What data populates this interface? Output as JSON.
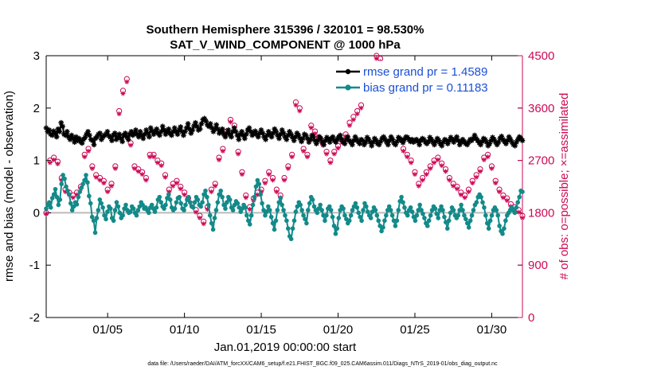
{
  "chart_data": {
    "type": "line",
    "title": "Southern Hemisphere 315396 / 320101 = 98.530%",
    "subtitle": "SAT_V_WIND_COMPONENT @ 1000 hPa",
    "xlabel": "Jan.01,2019 00:00:00 start",
    "ylabel": "rmse and bias (model - observation)",
    "ylabel_right": "# of obs: o=possible; ×=assimilated",
    "footer": "data file: /Users/raeder/DAI/ATM_forcXX/CAM6_setup/f.e21.FHIST_BGC.f09_025.CAM6assim.011/Diags_NTrS_2019-01/obs_diag_output.nc",
    "x_unit": "day of January 2019 (6-hourly cycles)",
    "xlim": [
      1.0,
      32.0
    ],
    "ylim": [
      -2,
      3
    ],
    "ylim_right": [
      0,
      4500
    ],
    "x_ticks": [
      5,
      10,
      15,
      20,
      25,
      30
    ],
    "x_tick_labels": [
      "01/05",
      "01/10",
      "01/15",
      "01/20",
      "01/25",
      "01/30"
    ],
    "y_ticks": [
      -2,
      -1,
      0,
      1,
      2,
      3
    ],
    "y_tick_labels": [
      "-2",
      "-1",
      "0",
      "1",
      "2",
      "3"
    ],
    "y2_ticks": [
      0,
      900,
      1800,
      2700,
      3600,
      4500
    ],
    "y2_tick_labels": [
      "0",
      "900",
      "1800",
      "2700",
      "3600",
      "4500"
    ],
    "legend": {
      "position": "top-right",
      "entries": [
        "rmse grand pr = 1.4589",
        "bias grand pr = 0.11183"
      ]
    },
    "colors": {
      "rmse": "#000000",
      "bias": "#138a8a",
      "obs": "#cc0a55",
      "zero_line": "#bbbbbb"
    },
    "series": [
      {
        "name": "rmse grand pr = 1.4589",
        "axis": "left",
        "marker": "star",
        "values": [
          1.62,
          1.55,
          1.58,
          1.5,
          1.48,
          1.56,
          1.52,
          1.45,
          1.6,
          1.55,
          1.72,
          1.65,
          1.5,
          1.48,
          1.55,
          1.45,
          1.4,
          1.48,
          1.42,
          1.35,
          1.45,
          1.38,
          1.42,
          1.36,
          1.33,
          1.4,
          1.44,
          1.5,
          1.55,
          1.48,
          1.4,
          1.38,
          1.3,
          1.42,
          1.45,
          1.5,
          1.52,
          1.4,
          1.45,
          1.48,
          1.5,
          1.55,
          1.47,
          1.44,
          1.38,
          1.48,
          1.52,
          1.4,
          1.45,
          1.5,
          1.42,
          1.36,
          1.48,
          1.52,
          1.45,
          1.4,
          1.5,
          1.55,
          1.48,
          1.52,
          1.58,
          1.5,
          1.45,
          1.55,
          1.48,
          1.42,
          1.5,
          1.58,
          1.52,
          1.45,
          1.62,
          1.56,
          1.5,
          1.55,
          1.6,
          1.52,
          1.48,
          1.55,
          1.65,
          1.58,
          1.5,
          1.55,
          1.6,
          1.52,
          1.48,
          1.55,
          1.62,
          1.55,
          1.5,
          1.58,
          1.64,
          1.55,
          1.48,
          1.55,
          1.62,
          1.7,
          1.6,
          1.52,
          1.58,
          1.66,
          1.72,
          1.65,
          1.58,
          1.6,
          1.7,
          1.78,
          1.8,
          1.75,
          1.68,
          1.65,
          1.7,
          1.62,
          1.55,
          1.6,
          1.68,
          1.6,
          1.52,
          1.56,
          1.6,
          1.5,
          1.45,
          1.52,
          1.58,
          1.5,
          1.45,
          1.55,
          1.62,
          1.55,
          1.48,
          1.4,
          1.5,
          1.55,
          1.48,
          1.42,
          1.5,
          1.58,
          1.62,
          1.55,
          1.48,
          1.52,
          1.56,
          1.5,
          1.45,
          1.52,
          1.58,
          1.52,
          1.45,
          1.4,
          1.48,
          1.55,
          1.5,
          1.45,
          1.52,
          1.6,
          1.55,
          1.48,
          1.42,
          1.5,
          1.58,
          1.52,
          1.45,
          1.4,
          1.48,
          1.55,
          1.5,
          1.44,
          1.38,
          1.45,
          1.52,
          1.48,
          1.42,
          1.36,
          1.42,
          1.5,
          1.48,
          1.42,
          1.35,
          1.4,
          1.48,
          1.45,
          1.38,
          1.32,
          1.38,
          1.45,
          1.42,
          1.35,
          1.3,
          1.38,
          1.44,
          1.4,
          1.35,
          1.42,
          1.45,
          1.38,
          1.35,
          1.4,
          1.45,
          1.48,
          1.4,
          1.35,
          1.32,
          1.4,
          1.45,
          1.38,
          1.35,
          1.3,
          1.38,
          1.45,
          1.4,
          1.36,
          1.32,
          1.4,
          1.38,
          1.3,
          1.35,
          1.44,
          1.4,
          1.35,
          1.28,
          1.35,
          1.42,
          1.38,
          1.32,
          1.3,
          1.36,
          1.42,
          1.45,
          1.4,
          1.35,
          1.3,
          1.38,
          1.45,
          1.4,
          1.33,
          1.3,
          1.36,
          1.44,
          1.42,
          1.38,
          1.34,
          1.4,
          1.45,
          1.44,
          1.4,
          1.36,
          1.4,
          1.35,
          1.38,
          1.4,
          1.36,
          1.3,
          1.38,
          1.42,
          1.4,
          1.35,
          1.32,
          1.36,
          1.44,
          1.4,
          1.35,
          1.3,
          1.36,
          1.42,
          1.38,
          1.32,
          1.28,
          1.35,
          1.4,
          1.38,
          1.32,
          1.38,
          1.44,
          1.4,
          1.35,
          1.4,
          1.45,
          1.38,
          1.3,
          1.35,
          1.4,
          1.36,
          1.32,
          1.3,
          1.35,
          1.4,
          1.38,
          1.42,
          1.48,
          1.42,
          1.38,
          1.34,
          1.3,
          1.36,
          1.42,
          1.4,
          1.35,
          1.28,
          1.32,
          1.38,
          1.44,
          1.4,
          1.35,
          1.3,
          1.35,
          1.42,
          1.46,
          1.4,
          1.36,
          1.32,
          1.38,
          1.45,
          1.4,
          1.35,
          1.3,
          1.28,
          1.35,
          1.4,
          1.45,
          1.42,
          1.38
        ]
      },
      {
        "name": "bias grand pr = 0.11183",
        "axis": "left",
        "marker": "dot",
        "values": [
          0.08,
          0.15,
          0.2,
          0.1,
          0.28,
          0.35,
          0.45,
          0.3,
          0.15,
          0.25,
          0.55,
          0.72,
          0.65,
          0.5,
          0.42,
          0.35,
          0.18,
          0.05,
          0.12,
          0.2,
          0.16,
          0.3,
          0.4,
          0.48,
          0.55,
          0.62,
          0.72,
          0.58,
          0.32,
          0.18,
          -0.08,
          -0.15,
          -0.38,
          -0.1,
          0.05,
          0.25,
          0.18,
          0.1,
          -0.05,
          -0.12,
          0.02,
          0.12,
          0.08,
          -0.1,
          -0.15,
          0.05,
          0.2,
          0.12,
          0.0,
          -0.1,
          -0.05,
          0.08,
          0.15,
          0.05,
          0.0,
          0.02,
          0.12,
          0.08,
          0.0,
          -0.05,
          0.05,
          0.12,
          0.2,
          0.15,
          0.08,
          0.1,
          0.05,
          0.0,
          0.1,
          0.15,
          0.08,
          0.02,
          0.1,
          0.25,
          0.3,
          0.2,
          0.12,
          0.08,
          0.15,
          0.28,
          0.35,
          0.25,
          0.1,
          0.05,
          0.08,
          0.2,
          0.28,
          0.3,
          0.18,
          0.08,
          0.05,
          0.15,
          0.25,
          0.3,
          0.2,
          0.12,
          0.1,
          0.2,
          0.3,
          0.25,
          0.15,
          0.12,
          0.2,
          0.35,
          0.42,
          0.3,
          0.15,
          -0.05,
          -0.2,
          -0.32,
          -0.1,
          0.05,
          0.2,
          0.35,
          0.42,
          0.3,
          0.15,
          0.08,
          0.2,
          0.3,
          0.25,
          0.1,
          0.05,
          0.15,
          0.22,
          0.18,
          0.1,
          0.02,
          0.08,
          0.15,
          0.1,
          -0.05,
          -0.15,
          -0.22,
          -0.05,
          0.15,
          0.3,
          0.5,
          0.62,
          0.55,
          0.35,
          0.18,
          0.05,
          -0.05,
          0.02,
          0.12,
          0.05,
          -0.08,
          -0.2,
          -0.32,
          -0.15,
          0.05,
          0.2,
          0.28,
          0.15,
          0.05,
          -0.05,
          -0.15,
          -0.3,
          -0.45,
          -0.5,
          -0.3,
          -0.15,
          0.02,
          0.12,
          0.2,
          0.15,
          0.05,
          -0.05,
          -0.12,
          -0.2,
          0.05,
          0.18,
          0.3,
          0.25,
          0.12,
          0.05,
          0.0,
          0.08,
          0.15,
          0.05,
          -0.05,
          -0.15,
          -0.05,
          0.08,
          0.12,
          0.05,
          -0.08,
          -0.25,
          -0.4,
          -0.3,
          -0.1,
          0.05,
          0.12,
          0.08,
          -0.05,
          -0.12,
          -0.2,
          -0.15,
          -0.05,
          0.05,
          0.12,
          0.18,
          0.1,
          0.0,
          -0.08,
          -0.15,
          0.05,
          0.18,
          0.12,
          0.02,
          -0.05,
          -0.1,
          0.02,
          0.1,
          0.05,
          -0.05,
          -0.15,
          -0.25,
          -0.35,
          -0.28,
          -0.15,
          -0.05,
          0.05,
          0.12,
          0.05,
          -0.05,
          -0.15,
          -0.25,
          -0.15,
          0.05,
          0.22,
          0.3,
          0.2,
          0.1,
          0.0,
          -0.05,
          0.05,
          0.1,
          0.02,
          -0.08,
          -0.15,
          -0.05,
          0.05,
          0.15,
          0.05,
          -0.02,
          -0.1,
          -0.2,
          -0.25,
          -0.15,
          -0.05,
          0.05,
          0.12,
          0.08,
          -0.02,
          -0.1,
          0.05,
          0.12,
          0.05,
          -0.08,
          -0.18,
          -0.3,
          -0.15,
          0.0,
          0.1,
          0.05,
          -0.05,
          -0.1,
          -0.05,
          0.05,
          0.15,
          0.05,
          -0.05,
          -0.12,
          -0.2,
          -0.28,
          -0.15,
          -0.05,
          0.05,
          0.15,
          0.2,
          0.3,
          0.35,
          0.3,
          0.2,
          0.1,
          -0.05,
          -0.2,
          -0.3,
          -0.15,
          -0.05,
          0.05,
          0.1,
          0.05,
          -0.05,
          -0.25,
          -0.35,
          -0.4,
          -0.3,
          -0.15,
          -0.05,
          0.0,
          0.05,
          0.1,
          0.05,
          0.0,
          0.1,
          0.2,
          0.3,
          0.42,
          0.4
        ]
      },
      {
        "name": "# of obs possible",
        "axis": "right",
        "marker": "circle",
        "x_step": 0.25,
        "values": [
          1800,
          2700,
          2750,
          2680,
          2400,
          2200,
          2150,
          2100,
          2150,
          2250,
          2800,
          2900,
          2600,
          2450,
          2400,
          2350,
          2200,
          2300,
          2600,
          3550,
          3900,
          4100,
          3000,
          2600,
          2550,
          2500,
          2400,
          2800,
          2800,
          2700,
          2650,
          2450,
          2200,
          2300,
          2350,
          2250,
          2150,
          2050,
          1950,
          1850,
          1750,
          1650,
          1900,
          2200,
          2300,
          2750,
          2900,
          3200,
          3400,
          3300,
          2850,
          2500,
          2100,
          1900,
          2050,
          2150,
          2200,
          2350,
          2500,
          2400,
          2200,
          2100,
          2400,
          2600,
          2800,
          3700,
          3600,
          2900,
          2800,
          3300,
          3200,
          3100,
          3000,
          2850,
          2700,
          2850,
          2950,
          3050,
          3150,
          3350,
          3450,
          3550,
          3650,
          4000,
          4200,
          4300,
          4500,
          4450,
          4350,
          4200,
          4100,
          3950,
          3850,
          2900,
          2800,
          2700,
          2500,
          2300,
          2400,
          2500,
          2600,
          2700,
          2750,
          2650,
          2550,
          2400,
          2300,
          2250,
          2150,
          2100,
          2200,
          2350,
          2450,
          2550,
          2750,
          2800,
          2600,
          2350,
          2200,
          2100,
          2050,
          1950,
          1900,
          1850,
          1750,
          1700,
          1800,
          1900,
          2100,
          2300,
          2400,
          2500,
          2600,
          2550,
          2450,
          2300,
          2200,
          2100,
          2050,
          1950,
          1900,
          1850,
          1750,
          1700,
          1650,
          1600,
          1500,
          1450,
          1350,
          1300,
          1450,
          1650,
          1850,
          2050,
          2200,
          2300,
          2450,
          2550,
          2650,
          2600,
          2550,
          2450,
          2350,
          2250,
          2150,
          2100,
          2050,
          1950,
          1900,
          1850,
          1750,
          1650,
          1600,
          1550,
          1500,
          1450,
          1600,
          1700,
          1800,
          1900,
          2100,
          2200,
          2300,
          2400,
          2500,
          2600,
          2700,
          2600,
          2500,
          2400,
          2350,
          2250,
          2150,
          2050,
          1950,
          1900,
          1850,
          1800,
          1750,
          1700,
          1650,
          1600,
          1550,
          1450,
          1350,
          1200,
          1150,
          1000,
          900,
          850,
          820,
          1800,
          1750,
          1700,
          650,
          0
        ]
      },
      {
        "name": "# of obs assimilated",
        "axis": "right",
        "marker": "asterisk",
        "x_step": 0.25,
        "values": [
          1780,
          2660,
          2710,
          2640,
          2360,
          2160,
          2110,
          2060,
          2110,
          2210,
          2760,
          2860,
          2560,
          2410,
          2360,
          2310,
          2160,
          2260,
          2560,
          3500,
          3850,
          4050,
          2960,
          2560,
          2510,
          2460,
          2360,
          2760,
          2760,
          2660,
          2610,
          2410,
          2160,
          2260,
          2310,
          2210,
          2110,
          2010,
          1910,
          1810,
          1710,
          1610,
          1860,
          2160,
          2260,
          2710,
          2860,
          3160,
          3360,
          3260,
          2810,
          2460,
          2060,
          1860,
          2010,
          2110,
          2160,
          2310,
          2460,
          2360,
          2160,
          2060,
          2360,
          2560,
          2760,
          3650,
          3550,
          2860,
          2760,
          3260,
          3160,
          3060,
          2960,
          2810,
          2660,
          2810,
          2910,
          3010,
          3110,
          3300,
          3400,
          3500,
          3600,
          3950,
          4150,
          4250,
          4450,
          4400,
          4300,
          4150,
          4050,
          3900,
          3800,
          2860,
          2760,
          2660,
          2460,
          2260,
          2360,
          2460,
          2560,
          2660,
          2710,
          2610,
          2510,
          2360,
          2260,
          2210,
          2110,
          2060,
          2160,
          2310,
          2410,
          2510,
          2710,
          2760,
          2560,
          2310,
          2160,
          2060,
          2010,
          1910,
          1860,
          1810,
          1710,
          1660,
          1760,
          1860,
          2060,
          2260,
          2360,
          2460,
          2560,
          2510,
          2410,
          2260,
          2160,
          2060,
          2010,
          1910,
          1860,
          1810,
          1710,
          1660,
          1610,
          1560,
          1460,
          1410,
          1310,
          1260,
          1410,
          1610,
          1810,
          2010,
          2160,
          2260,
          2410,
          2510,
          2610,
          2560,
          2510,
          2410,
          2310,
          2210,
          2110,
          2060,
          2010,
          1910,
          1860,
          1810,
          1710,
          1610,
          1560,
          1510,
          1460,
          1410,
          1560,
          1660,
          1760,
          1860,
          2060,
          2160,
          2260,
          2360,
          2460,
          2560,
          2660,
          2560,
          2460,
          2360,
          2310,
          2210,
          2110,
          2010,
          1910,
          1860,
          1810,
          1760,
          1710,
          1660,
          1610,
          1560,
          1510,
          1410,
          1310,
          1160,
          1110,
          960,
          860,
          810,
          780,
          1760,
          1710,
          1660,
          610,
          0
        ]
      }
    ]
  }
}
